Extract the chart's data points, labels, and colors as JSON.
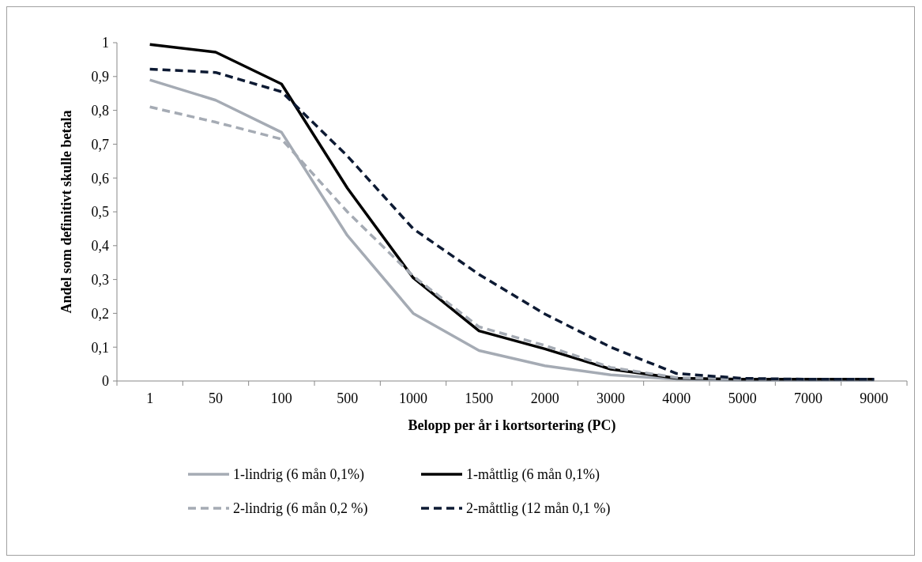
{
  "chart_data": {
    "type": "line",
    "xlabel": "Belopp per år i kortsortering (PC)",
    "ylabel": "Andel som definitivt skulle betala",
    "categories": [
      "1",
      "50",
      "100",
      "500",
      "1000",
      "1500",
      "2000",
      "3000",
      "4000",
      "5000",
      "7000",
      "9000"
    ],
    "series": [
      {
        "name": "1-lindrig (6 mån 0,1%)",
        "color": "#a5abb4",
        "line_style": "solid",
        "values": [
          0.89,
          0.83,
          0.735,
          0.43,
          0.2,
          0.09,
          0.045,
          0.018,
          0.005,
          0.002,
          0.002,
          0.002
        ]
      },
      {
        "name": "1-måttlig (6 mån 0,1%)",
        "color": "#000000",
        "line_style": "solid",
        "values": [
          0.995,
          0.972,
          0.878,
          0.57,
          0.305,
          0.148,
          0.095,
          0.035,
          0.008,
          0.005,
          0.005,
          0.005
        ]
      },
      {
        "name": "2-lindrig (6 mån 0,2 %)",
        "color": "#a5abb4",
        "line_style": "dashed",
        "values": [
          0.81,
          0.765,
          0.715,
          0.5,
          0.31,
          0.16,
          0.105,
          0.04,
          0.01,
          0.005,
          0.005,
          0.005
        ]
      },
      {
        "name": "2-måttlig (12 mån 0,1 %)",
        "color": "#0d1a33",
        "line_style": "dashed",
        "values": [
          0.922,
          0.912,
          0.855,
          0.665,
          0.45,
          0.315,
          0.198,
          0.1,
          0.022,
          0.008,
          0.005,
          0.005
        ]
      }
    ],
    "ylim": [
      0,
      1
    ],
    "yticks": [
      0,
      {
        "value": 0.1,
        "label": "0,1"
      },
      {
        "value": 0.2,
        "label": "0,2"
      },
      {
        "value": 0.3,
        "label": "0,3"
      },
      {
        "value": 0.4,
        "label": "0,4"
      },
      {
        "value": 0.5,
        "label": "0,5"
      },
      {
        "value": 0.6,
        "label": "0,6"
      },
      {
        "value": 0.7,
        "label": "0,7"
      },
      {
        "value": 0.8,
        "label": "0,8"
      },
      {
        "value": 0.9,
        "label": "0,9"
      },
      1
    ],
    "grid": false,
    "legend": "bottom",
    "marker": "none"
  }
}
